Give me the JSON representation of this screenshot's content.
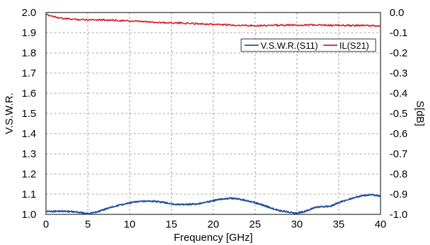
{
  "chart_data": {
    "type": "line",
    "title": "",
    "xlabel": "Frequency [GHz]",
    "ylabel_left": "V.S.W.R.",
    "ylabel_right": "S[dB]",
    "xlim": [
      0,
      40
    ],
    "ylim_left": [
      1.0,
      2.0
    ],
    "ylim_right": [
      -1.0,
      0.0
    ],
    "x_ticks": [
      "0",
      "5",
      "10",
      "15",
      "20",
      "25",
      "30",
      "35",
      "40"
    ],
    "y_left_ticks": [
      "1.0",
      "1.1",
      "1.2",
      "1.3",
      "1.4",
      "1.5",
      "1.6",
      "1.7",
      "1.8",
      "1.9",
      "2.0"
    ],
    "y_right_ticks": [
      "-1.0",
      "-0.9",
      "-0.8",
      "-0.7",
      "-0.6",
      "-0.5",
      "-0.4",
      "-0.3",
      "-0.2",
      "-0.1",
      "0.0"
    ],
    "grid": true,
    "legend_position": "top-right",
    "series": [
      {
        "name": "V.S.W.R.(S11)",
        "axis": "left",
        "color": "#1f4e9c",
        "x": [
          0,
          1,
          2,
          3,
          4,
          5,
          6,
          7,
          8,
          9,
          10,
          11,
          12,
          13,
          14,
          15,
          16,
          17,
          18,
          19,
          20,
          21,
          22,
          23,
          24,
          25,
          26,
          27,
          28,
          29,
          30,
          31,
          32,
          33,
          34,
          35,
          36,
          37,
          38,
          39,
          40
        ],
        "values": [
          1.015,
          1.015,
          1.016,
          1.014,
          1.01,
          1.004,
          1.01,
          1.025,
          1.038,
          1.048,
          1.057,
          1.063,
          1.066,
          1.065,
          1.06,
          1.052,
          1.049,
          1.05,
          1.052,
          1.058,
          1.068,
          1.076,
          1.08,
          1.077,
          1.068,
          1.058,
          1.045,
          1.03,
          1.018,
          1.012,
          1.006,
          1.015,
          1.032,
          1.038,
          1.04,
          1.058,
          1.072,
          1.085,
          1.093,
          1.097,
          1.09
        ]
      },
      {
        "name": "IL(S21)",
        "axis": "right",
        "color": "#d9171f",
        "x": [
          0,
          2,
          4,
          6,
          8,
          10,
          12,
          14,
          16,
          18,
          20,
          22,
          24,
          26,
          28,
          30,
          32,
          34,
          36,
          38,
          40
        ],
        "values": [
          -0.01,
          -0.03,
          -0.035,
          -0.035,
          -0.038,
          -0.042,
          -0.046,
          -0.05,
          -0.052,
          -0.055,
          -0.058,
          -0.062,
          -0.064,
          -0.064,
          -0.063,
          -0.062,
          -0.062,
          -0.063,
          -0.064,
          -0.064,
          -0.067
        ]
      }
    ]
  }
}
